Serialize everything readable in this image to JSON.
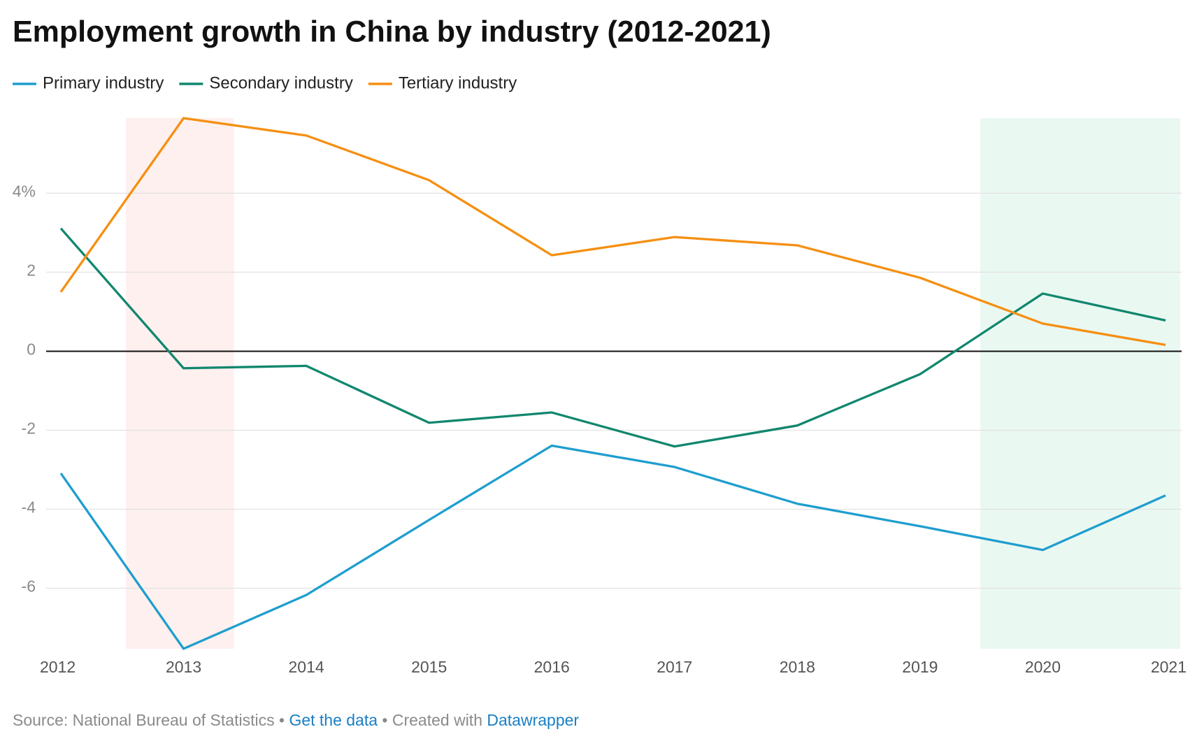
{
  "chart_data": {
    "type": "line",
    "title": "Employment growth in China by industry (2012-2021)",
    "x": [
      2012,
      2013,
      2014,
      2015,
      2016,
      2017,
      2018,
      2019,
      2020,
      2021
    ],
    "xlim": [
      2012,
      2021
    ],
    "xticks": [
      2012,
      2013,
      2014,
      2015,
      2016,
      2017,
      2018,
      2019,
      2020,
      2021
    ],
    "ylim": [
      -7.53,
      5.9
    ],
    "yticks": [
      -6,
      -4,
      -2,
      0,
      {
        "value": 4,
        "label": "4%"
      },
      2
    ],
    "grid": true,
    "zero_line": true,
    "legend": "top-left",
    "highlights": [
      {
        "x": [
          2012.53,
          2013.41
        ],
        "color": "#fdf0ee"
      },
      {
        "x": [
          2019.49,
          2021.12
        ],
        "color": "#eaf8f2"
      }
    ],
    "series": [
      {
        "name": "Primary industry",
        "color": "#1f9ece",
        "values": [
          -3.09,
          -7.53,
          -6.17,
          -4.27,
          -2.39,
          -2.93,
          -3.86,
          -4.43,
          -5.03,
          -3.65
        ]
      },
      {
        "name": "Secondary industry",
        "color": "#11876e",
        "values": [
          3.11,
          -0.43,
          -0.37,
          -1.81,
          -1.55,
          -2.41,
          -1.88,
          -0.58,
          1.46,
          0.78
        ]
      },
      {
        "name": "Tertiary industry",
        "color": "#f58f12",
        "values": [
          1.5,
          5.9,
          5.46,
          4.33,
          2.43,
          2.89,
          2.68,
          1.86,
          0.7,
          0.16
        ]
      }
    ],
    "footer": {
      "source": "Source: National Bureau of Statistics",
      "separator": "•",
      "data_link": "Get the data",
      "created": "Created with",
      "tool": "Datawrapper"
    }
  }
}
